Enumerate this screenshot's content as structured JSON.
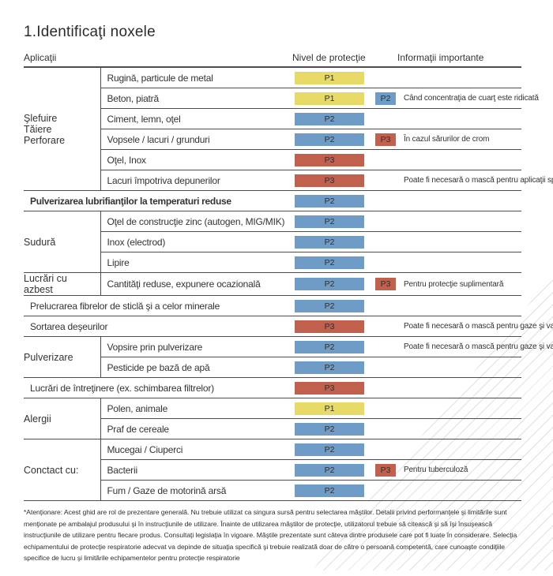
{
  "title": "1.Identificaţi noxele",
  "columns": {
    "applications": "Aplicaţii",
    "protection_level": "Nivel de protecţie",
    "important_info": "Informaţii importante"
  },
  "colors": {
    "P1": "#e7da67",
    "P2": "#6f9cc7",
    "P3": "#c2604e",
    "border": "#4d4d4d"
  },
  "rows": [
    {
      "group": "Şlefuire\nTăiere\nPerforare",
      "span": 6,
      "label": "Rugină, particule de metal",
      "badge": "P1"
    },
    {
      "label": "Beton, piatră",
      "badge": "P1",
      "badge2": "P2",
      "info": "Când concentraţia de cuarţ este ridicată"
    },
    {
      "label": "Ciment, lemn, oţel",
      "badge": "P2"
    },
    {
      "label": "Vopsele / lacuri / grunduri",
      "badge": "P2",
      "badge2": "P3",
      "info": "În cazul sărurilor de crom"
    },
    {
      "label": "Oţel, Inox",
      "badge": "P3"
    },
    {
      "label": "Lacuri împotriva depunerilor",
      "badge": "P3",
      "info": "Poate fi necesară o mască pentru aplicaţii speciale"
    },
    {
      "full": true,
      "bold": true,
      "label": "Pulverizarea lubrifianţilor la temperaturi reduse",
      "badge": "P2"
    },
    {
      "group": "Sudură",
      "span": 3,
      "label": "Oţel de construcţie zinc (autogen, MIG/MIK)",
      "badge": "P2"
    },
    {
      "label": "Inox (electrod)",
      "badge": "P2"
    },
    {
      "label": "Lipire",
      "badge": "P2"
    },
    {
      "group": "Lucrări cu azbest",
      "span": 1,
      "label": "Cantităţi reduse, expunere ocazională",
      "badge": "P2",
      "badge2": "P3",
      "info": "Pentru protecţie suplimentară"
    },
    {
      "full": true,
      "label": "Prelucrarea fibrelor de sticlă şi a celor minerale",
      "badge": "P2"
    },
    {
      "full": true,
      "label": "Sortarea deşeurilor",
      "badge": "P3",
      "info": "Poate fi necesară o mască pentru gaze şi vapori"
    },
    {
      "group": "Pulverizare",
      "span": 2,
      "label": "Vopsire prin pulverizare",
      "badge": "P2",
      "info": "Poate fi necesară o mască pentru gaze şi vapori"
    },
    {
      "label": "Pesticide pe bază de apă",
      "badge": "P2"
    },
    {
      "full": true,
      "label": "Lucrări de întreţinere (ex. schimbarea filtrelor)",
      "badge": "P3"
    },
    {
      "group": "Alergii",
      "span": 2,
      "label": "Polen, animale",
      "badge": "P1"
    },
    {
      "label": "Praf de cereale",
      "badge": "P2"
    },
    {
      "group": "Conctact cu:",
      "span": 3,
      "label": "Mucegai / Ciuperci",
      "badge": "P2"
    },
    {
      "label": "Bacterii",
      "badge": "P2",
      "badge2": "P3",
      "info": "Pentru tuberculoză"
    },
    {
      "label": "Fum / Gaze de motorină arsă",
      "badge": "P2"
    }
  ],
  "footnote": "*Atenţionare: Acest ghid are rol de prezentare generală. Nu trebuie utilizat ca singura sursă pentru selectarea măştilor. Detalii privind performanţele şi limitările sunt menţionate pe ambalajul produsului şi în instrucţiunile de utilizare. Înainte de utilizarea măştilor de protecţie, utilizatorul trebuie să citească şi să îşi însuşească instrucţiunile de utilizare pentru fiecare produs. Consultaţi legislaţia în vigoare. Măştile prezentate sunt câteva dintre produsele care pot fi luate în considerare. Selecţia echipamentului de protecţie respiratorie adecvat va depinde de situaţia specifică şi trebuie realizată doar de către o persoană competentă, care cunoaşte condiţiile specifice de lucru şi limitările echipamentelor pentru protecţie respiratorie"
}
